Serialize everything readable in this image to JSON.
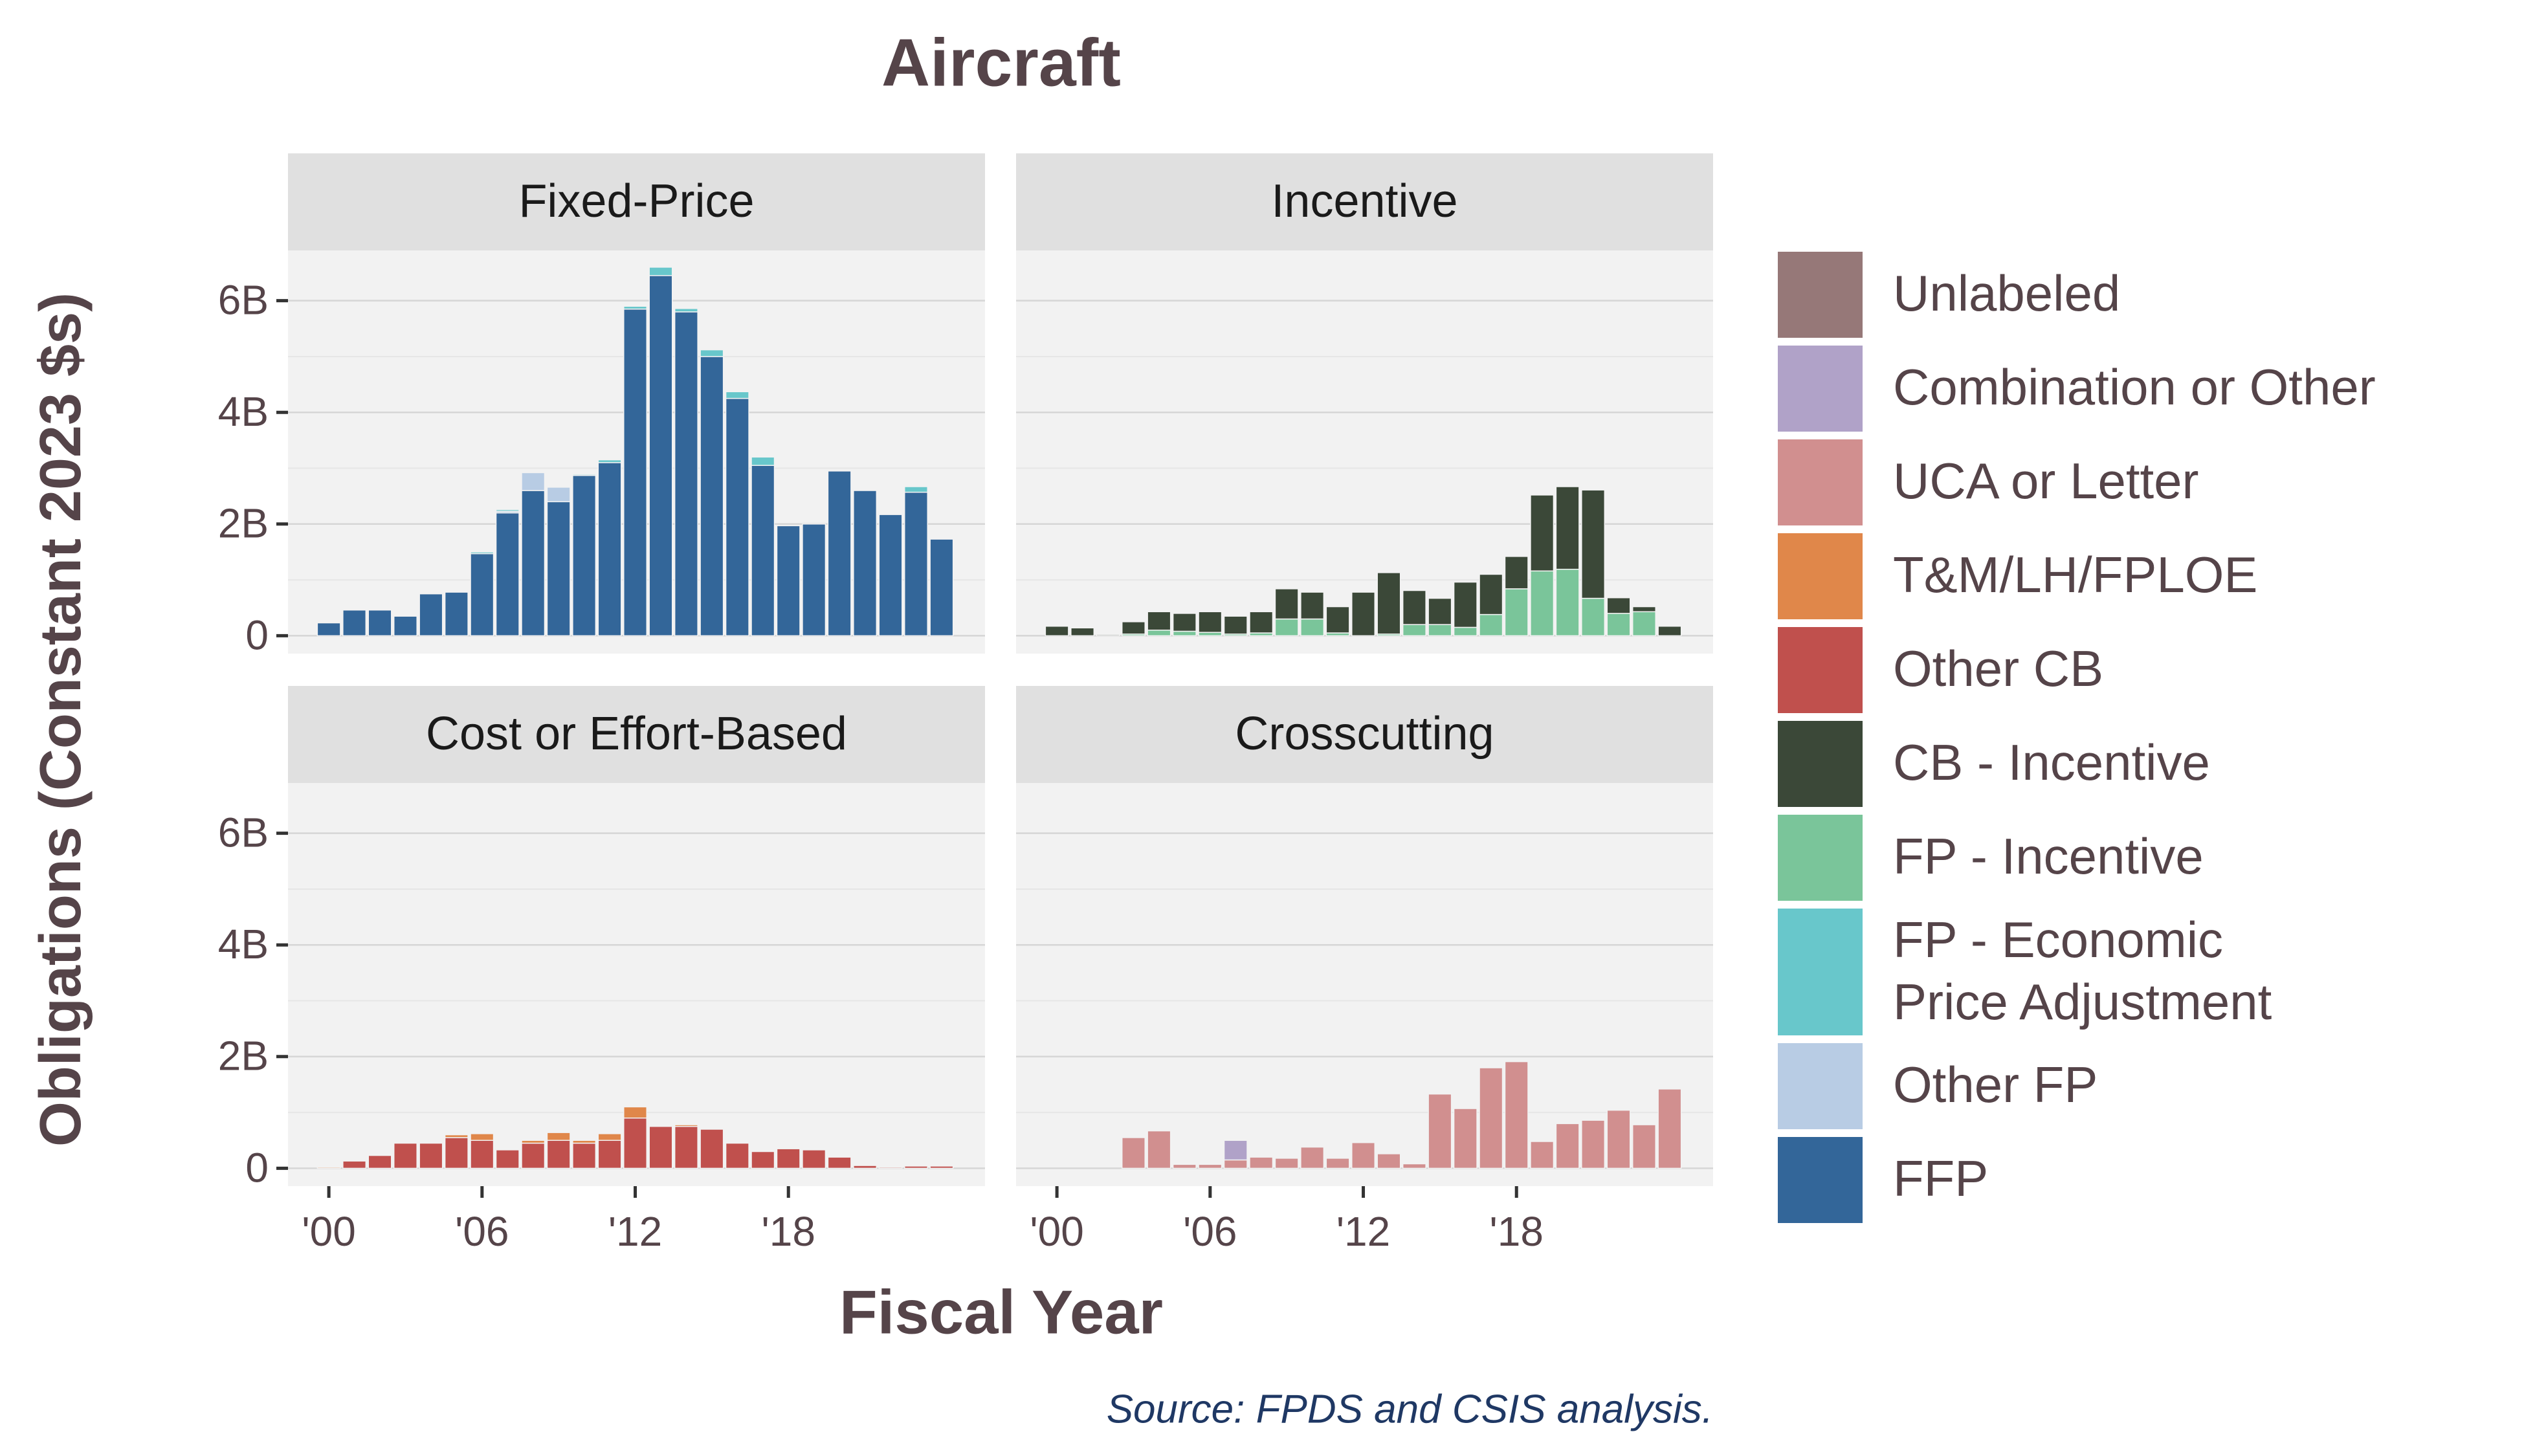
{
  "chart_data": {
    "type": "bar",
    "stacked": true,
    "title": "Aircraft",
    "x_label": "Fiscal Year",
    "y_label": "Obligations (Constant 2023 $s)",
    "source": "Source: FPDS and CSIS analysis.",
    "x": [
      2000,
      2001,
      2002,
      2003,
      2004,
      2005,
      2006,
      2007,
      2008,
      2009,
      2010,
      2011,
      2012,
      2013,
      2014,
      2015,
      2016,
      2017,
      2018,
      2019,
      2020,
      2021,
      2022,
      2023,
      2024
    ],
    "xlim": [
      1998.4,
      2025.7
    ],
    "xticks": [
      {
        "value": 2000,
        "label": "'00"
      },
      {
        "value": 2006,
        "label": "'06"
      },
      {
        "value": 2012,
        "label": "'12"
      },
      {
        "value": 2018,
        "label": "'18"
      }
    ],
    "ylim": [
      -0.32,
      6.9
    ],
    "yticks": [
      0,
      {
        "value": 2,
        "label": "2B"
      },
      {
        "value": 4,
        "label": "4B"
      },
      {
        "value": 6,
        "label": "6B"
      }
    ],
    "minor_yticks": [
      1,
      3,
      5
    ],
    "grid": true,
    "legend": "right",
    "series": [
      {
        "name": "Unlabeled",
        "color": "#967878"
      },
      {
        "name": "Combination or Other",
        "color": "#b0a2c8"
      },
      {
        "name": "UCA or Letter",
        "color": "#d18f8f"
      },
      {
        "name": "T&M/LH/FPLOE",
        "color": "#e0874a"
      },
      {
        "name": "Other CB",
        "color": "#c0504d"
      },
      {
        "name": "CB - Incentive",
        "color": "#3b4838"
      },
      {
        "name": "FP - Incentive",
        "color": "#7ac59a"
      },
      {
        "name": "FP - Economic Price Adjustment",
        "color": "#68c7cb"
      },
      {
        "name": "Other FP",
        "color": "#b8cce4"
      },
      {
        "name": "FFP",
        "color": "#336699"
      }
    ],
    "facets": [
      {
        "title": "Fixed-Price",
        "series": [
          {
            "name": "FFP",
            "values": [
              0.23,
              0.46,
              0.46,
              0.35,
              0.75,
              0.78,
              1.47,
              2.2,
              2.6,
              2.4,
              2.87,
              3.1,
              5.85,
              6.45,
              5.8,
              5.0,
              4.25,
              3.05,
              1.97,
              2.0,
              2.95,
              2.6,
              2.17,
              2.57,
              1.73
            ]
          },
          {
            "name": "Other FP",
            "values": [
              0,
              0,
              0,
              0,
              0,
              0,
              0,
              0.03,
              0.32,
              0.26,
              0,
              0,
              0,
              0,
              0,
              0,
              0,
              0,
              0,
              0,
              0,
              0,
              0,
              0,
              0
            ]
          },
          {
            "name": "FP - Economic Price Adjustment",
            "values": [
              0,
              0,
              0,
              0,
              0,
              0,
              0.03,
              0.03,
              0,
              0,
              0.02,
              0.05,
              0.05,
              0.15,
              0.06,
              0.12,
              0.12,
              0.15,
              0,
              0,
              0,
              0,
              0,
              0.1,
              0
            ]
          }
        ]
      },
      {
        "title": "Incentive",
        "series": [
          {
            "name": "FP - Incentive",
            "values": [
              0,
              0,
              0,
              0.03,
              0.1,
              0.08,
              0.06,
              0.03,
              0.05,
              0.3,
              0.3,
              0.05,
              0,
              0.03,
              0.2,
              0.2,
              0.15,
              0.38,
              0.84,
              1.16,
              1.19,
              0.67,
              0.4,
              0.43,
              0
            ]
          },
          {
            "name": "CB - Incentive",
            "values": [
              0.17,
              0.14,
              0.02,
              0.22,
              0.33,
              0.32,
              0.37,
              0.32,
              0.38,
              0.54,
              0.48,
              0.47,
              0.78,
              1.1,
              0.61,
              0.47,
              0.81,
              0.72,
              0.58,
              1.36,
              1.48,
              1.94,
              0.28,
              0.09,
              0.17
            ]
          }
        ]
      },
      {
        "title": "Cost or Effort-Based",
        "series": [
          {
            "name": "Other CB",
            "values": [
              0,
              0.13,
              0.23,
              0.45,
              0.45,
              0.55,
              0.5,
              0.33,
              0.45,
              0.5,
              0.45,
              0.5,
              0.9,
              0.75,
              0.75,
              0.7,
              0.45,
              0.3,
              0.35,
              0.33,
              0.2,
              0.05,
              0.02,
              0.04,
              0.04
            ]
          },
          {
            "name": "T&M/LH/FPLOE",
            "values": [
              0.02,
              0,
              0,
              0,
              0,
              0.05,
              0.12,
              0,
              0.05,
              0.14,
              0.05,
              0.12,
              0.2,
              0,
              0.03,
              0,
              0,
              0,
              0,
              0,
              0,
              0,
              0,
              0,
              0
            ]
          }
        ]
      },
      {
        "title": "Crosscutting",
        "series": [
          {
            "name": "UCA or Letter",
            "values": [
              0,
              0,
              0,
              0.55,
              0.67,
              0.07,
              0.07,
              0.15,
              0.2,
              0.18,
              0.38,
              0.18,
              0.46,
              0.26,
              0.08,
              1.33,
              1.07,
              1.8,
              1.91,
              0.48,
              0.8,
              0.86,
              1.04,
              0.78,
              1.42
            ]
          },
          {
            "name": "Combination or Other",
            "values": [
              0,
              0,
              0,
              0,
              0,
              0,
              0,
              0.35,
              0,
              0,
              0,
              0,
              0,
              0,
              0,
              0,
              0,
              0,
              0,
              0,
              0,
              0,
              0,
              0,
              0
            ]
          }
        ]
      }
    ]
  }
}
